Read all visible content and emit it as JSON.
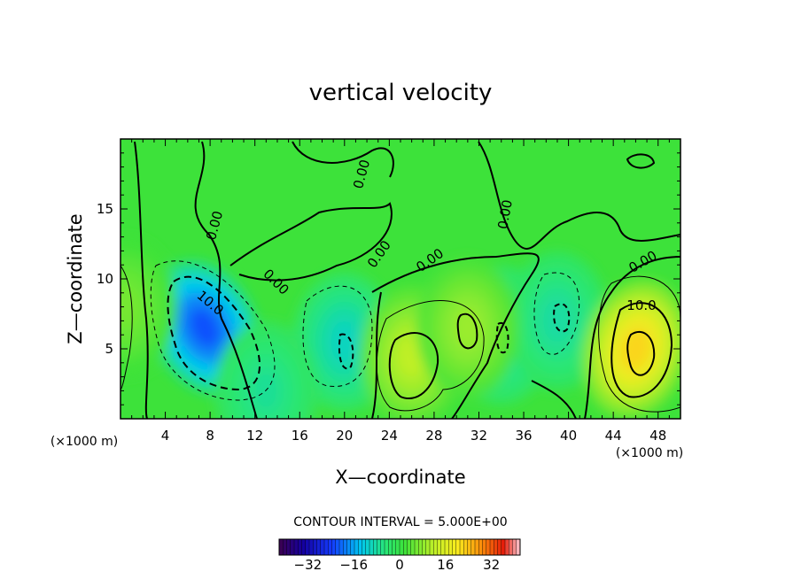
{
  "chart_data": {
    "type": "heatmap",
    "title": "vertical velocity",
    "xlabel": "X—coordinate",
    "ylabel": "Z—coordinate",
    "x_unit": "(×1000 m)",
    "y_unit": "(×1000 m)",
    "xlim": [
      0,
      50
    ],
    "ylim": [
      0,
      20
    ],
    "xticks": [
      "4",
      "8",
      "12",
      "16",
      "20",
      "24",
      "28",
      "32",
      "36",
      "40",
      "44",
      "48"
    ],
    "yticks": [
      "5",
      "10",
      "15"
    ],
    "contour_labels": [
      "0.00",
      "0.00",
      "0.00",
      "0.00",
      "0.00",
      "0.00",
      "0.00",
      "10.0",
      "10.0"
    ],
    "contour_interval_text": "CONTOUR INTERVAL = 5.000E+00",
    "colorbar": {
      "min": -42,
      "max": 42,
      "ticks": [
        "−32",
        "−16",
        "0",
        "16",
        "32"
      ]
    },
    "field_centers": [
      {
        "x": 7.5,
        "z": 6.5,
        "value": -22
      },
      {
        "x": 20,
        "z": 5.5,
        "value": -10
      },
      {
        "x": 34,
        "z": 6,
        "value": -9
      },
      {
        "x": 39,
        "z": 7,
        "value": -8
      },
      {
        "x": 13,
        "z": 2,
        "value": -7
      },
      {
        "x": 46,
        "z": 5,
        "value": 22
      },
      {
        "x": 26,
        "z": 4.5,
        "value": 12
      },
      {
        "x": 31,
        "z": 6.5,
        "value": 9
      },
      {
        "x": 0.5,
        "z": 8,
        "value": 6
      }
    ]
  }
}
